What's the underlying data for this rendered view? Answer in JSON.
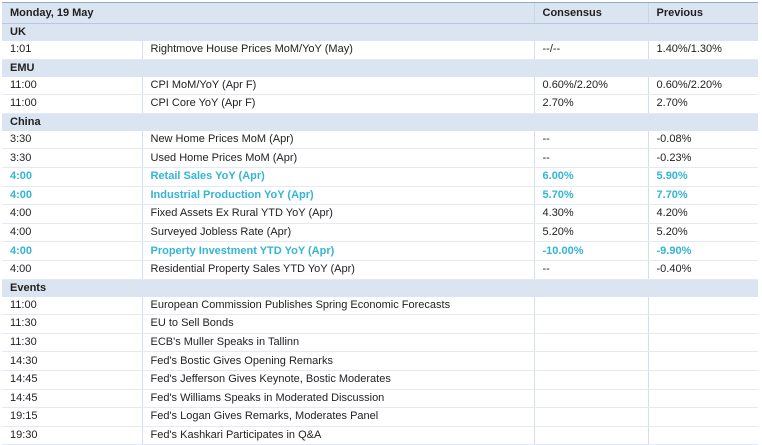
{
  "header": {
    "date": "Monday, 19 May",
    "consensus": "Consensus",
    "previous": "Previous"
  },
  "sections": [
    {
      "name": "UK",
      "rows": [
        {
          "time": "1:01",
          "event": "Rightmove House Prices MoM/YoY (May)",
          "consensus": "--/--",
          "previous": "1.40%/1.30%",
          "highlight": false
        }
      ]
    },
    {
      "name": "EMU",
      "rows": [
        {
          "time": "11:00",
          "event": "CPI MoM/YoY (Apr F)",
          "consensus": "0.60%/2.20%",
          "previous": "0.60%/2.20%",
          "highlight": false
        },
        {
          "time": "11:00",
          "event": "CPI Core YoY (Apr F)",
          "consensus": "2.70%",
          "previous": "2.70%",
          "highlight": false
        }
      ]
    },
    {
      "name": "China",
      "rows": [
        {
          "time": "3:30",
          "event": "New Home Prices MoM (Apr)",
          "consensus": "--",
          "previous": "-0.08%",
          "highlight": false
        },
        {
          "time": "3:30",
          "event": "Used Home Prices MoM (Apr)",
          "consensus": "--",
          "previous": "-0.23%",
          "highlight": false
        },
        {
          "time": "4:00",
          "event": "Retail Sales YoY (Apr)",
          "consensus": "6.00%",
          "previous": "5.90%",
          "highlight": true
        },
        {
          "time": "4:00",
          "event": "Industrial Production YoY (Apr)",
          "consensus": "5.70%",
          "previous": "7.70%",
          "highlight": true
        },
        {
          "time": "4:00",
          "event": "Fixed Assets Ex Rural YTD YoY (Apr)",
          "consensus": "4.30%",
          "previous": "4.20%",
          "highlight": false
        },
        {
          "time": "4:00",
          "event": "Surveyed Jobless Rate (Apr)",
          "consensus": "5.20%",
          "previous": "5.20%",
          "highlight": false
        },
        {
          "time": "4:00",
          "event": "Property Investment YTD YoY (Apr)",
          "consensus": "-10.00%",
          "previous": "-9.90%",
          "highlight": true
        },
        {
          "time": "4:00",
          "event": "Residential Property Sales YTD YoY (Apr)",
          "consensus": "--",
          "previous": "-0.40%",
          "highlight": false
        }
      ]
    },
    {
      "name": "Events",
      "rows": [
        {
          "time": "11:00",
          "event": "European Commission Publishes Spring Economic Forecasts",
          "consensus": "",
          "previous": "",
          "highlight": false
        },
        {
          "time": "11:30",
          "event": "EU to Sell Bonds",
          "consensus": "",
          "previous": "",
          "highlight": false
        },
        {
          "time": "11:30",
          "event": "ECB's Muller Speaks in Tallinn",
          "consensus": "",
          "previous": "",
          "highlight": false
        },
        {
          "time": "14:30",
          "event": "Fed's Bostic Gives Opening Remarks",
          "consensus": "",
          "previous": "",
          "highlight": false
        },
        {
          "time": "14:45",
          "event": "Fed's Jefferson Gives Keynote, Bostic Moderates",
          "consensus": "",
          "previous": "",
          "highlight": false
        },
        {
          "time": "14:45",
          "event": "Fed's Williams Speaks in Moderated Discussion",
          "consensus": "",
          "previous": "",
          "highlight": false
        },
        {
          "time": "19:15",
          "event": "Fed's Logan Gives Remarks, Moderates Panel",
          "consensus": "",
          "previous": "",
          "highlight": false
        },
        {
          "time": "19:30",
          "event": "Fed's Kashkari Participates in Q&A",
          "consensus": "",
          "previous": "",
          "highlight": false
        }
      ]
    }
  ],
  "colors": {
    "section_bg": "#dbe5f1",
    "highlight_text": "#33b5d6",
    "border": "#8fa9c9"
  }
}
